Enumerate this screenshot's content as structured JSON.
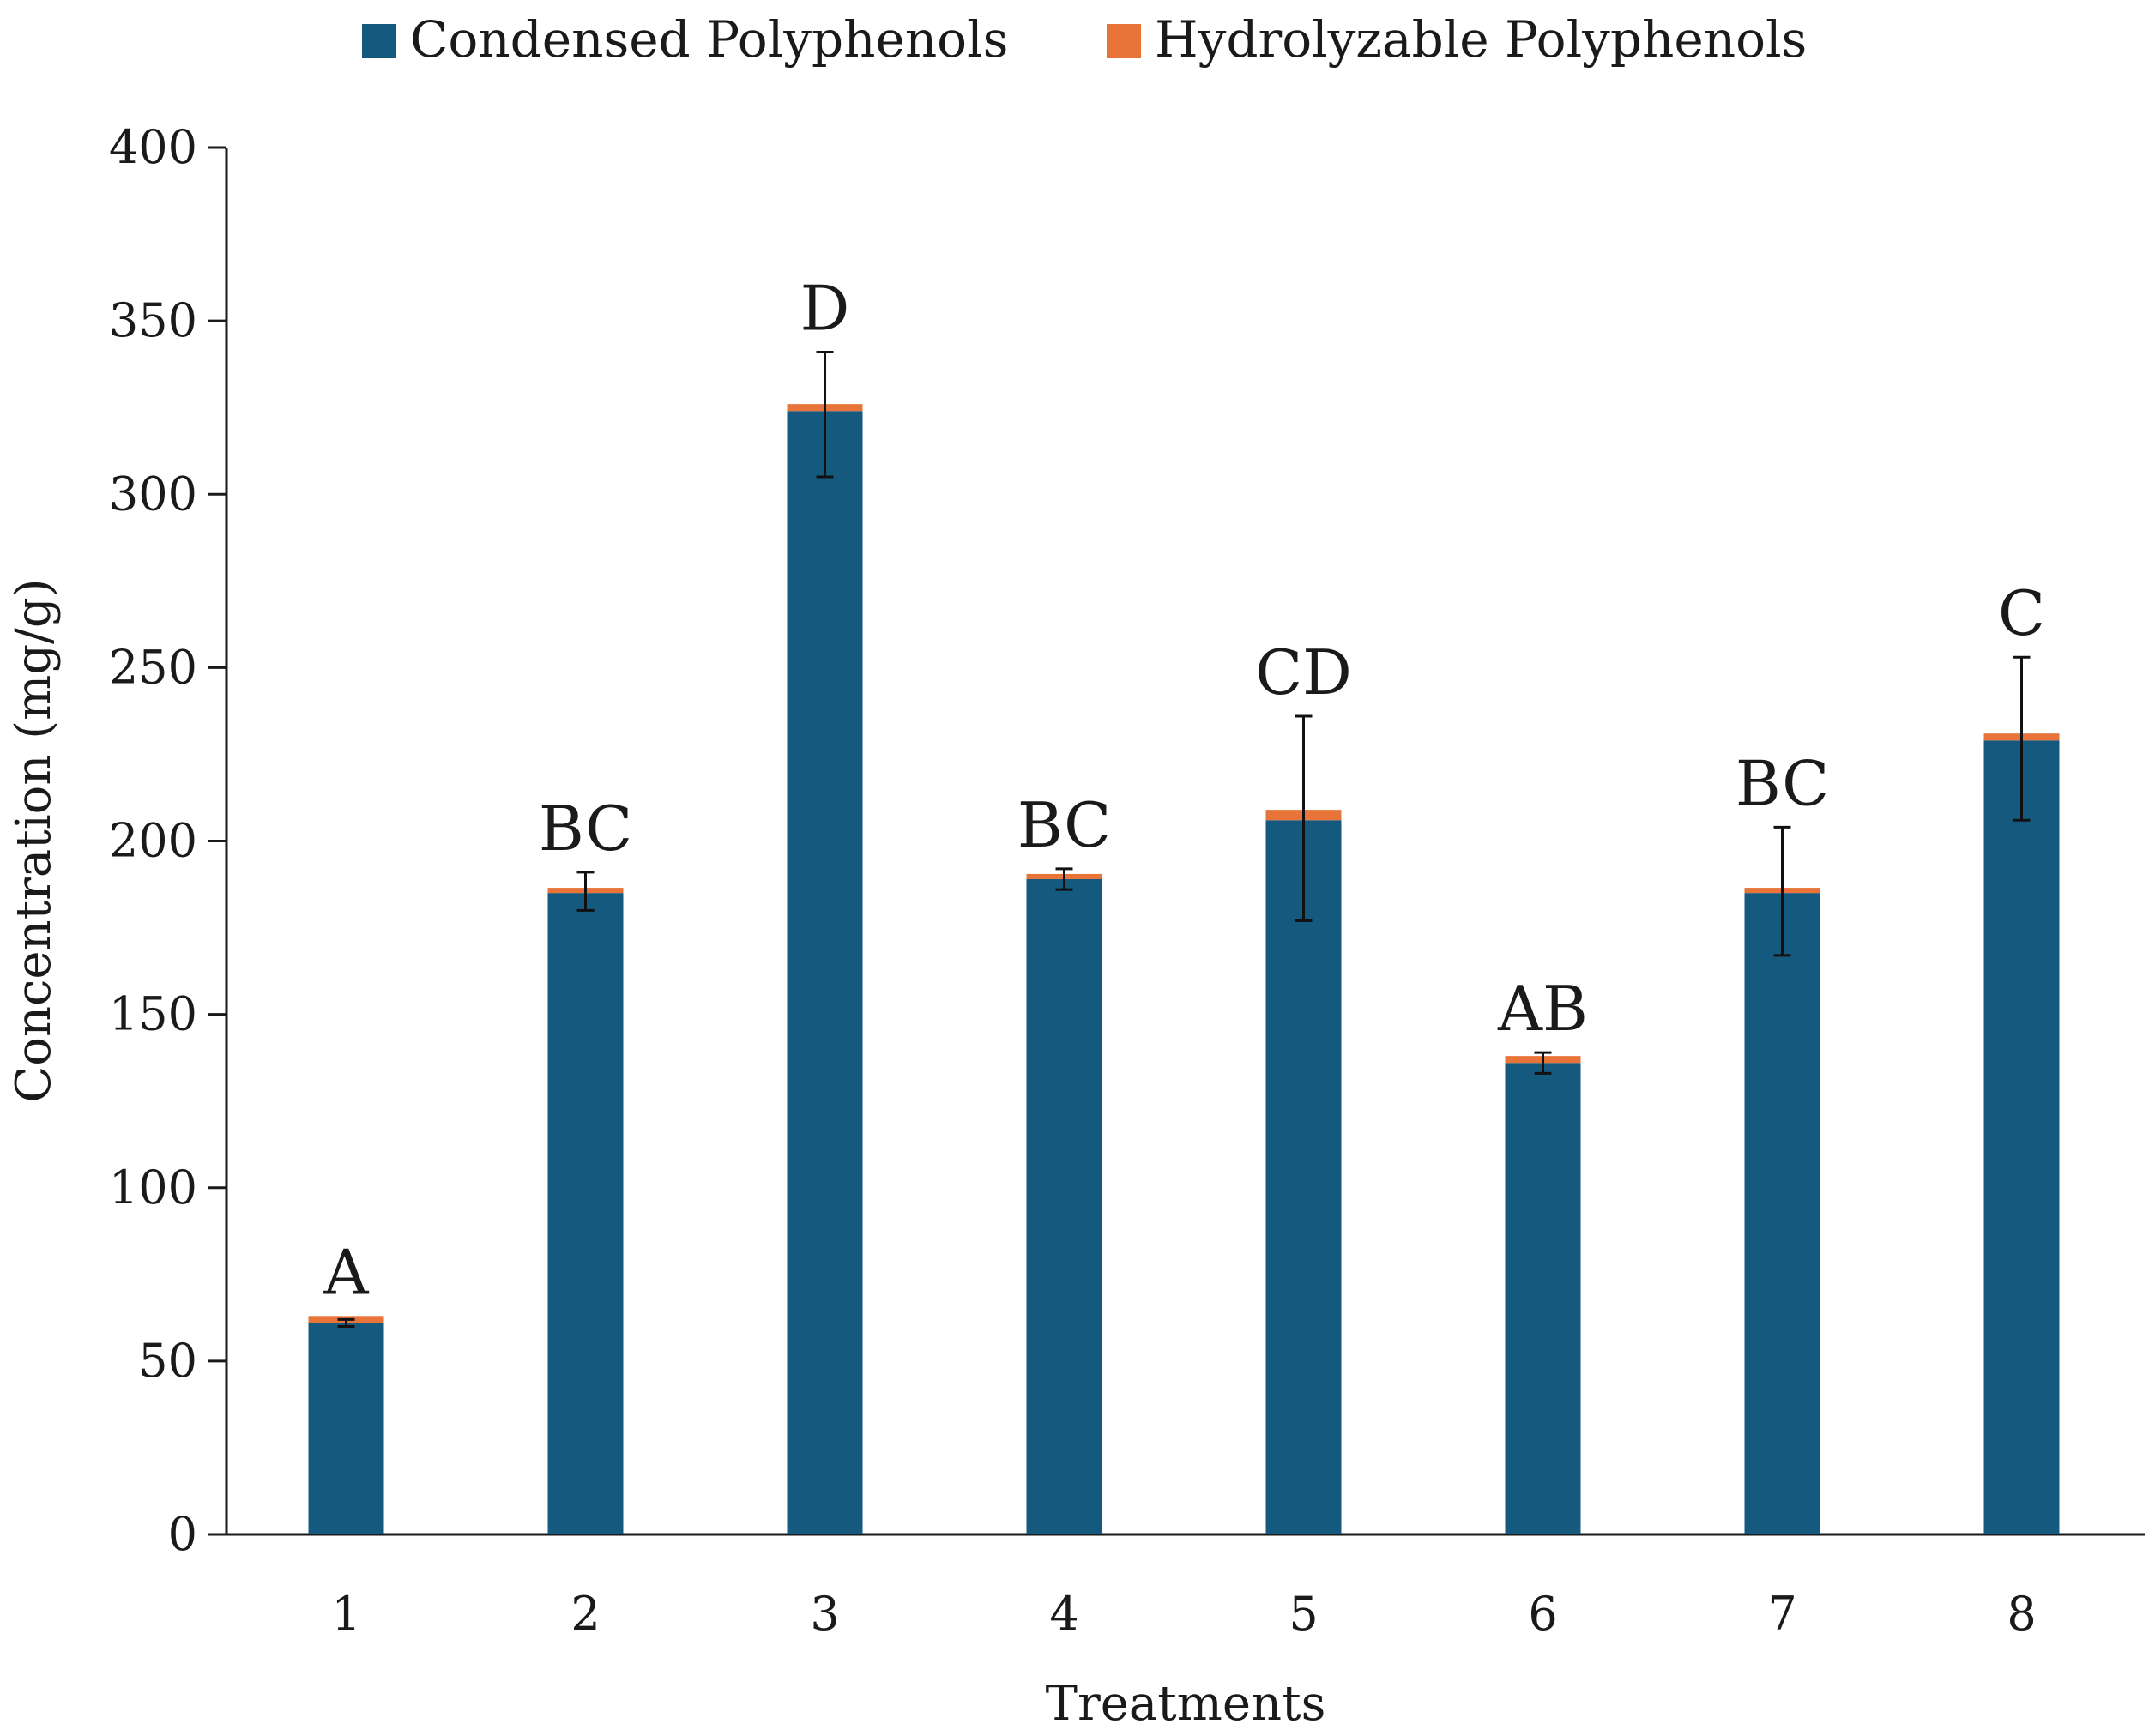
{
  "chart_data": {
    "type": "bar",
    "stacked": true,
    "title": "",
    "xlabel": "Treatments",
    "ylabel": "Concentration  (mg/g)",
    "ylim": [
      0,
      400
    ],
    "yticks": [
      0,
      50,
      100,
      150,
      200,
      250,
      300,
      350,
      400
    ],
    "categories": [
      "1",
      "2",
      "3",
      "4",
      "5",
      "6",
      "7",
      "8"
    ],
    "series": [
      {
        "name": "Condensed Polyphenols",
        "color": "#155a7e",
        "values": [
          61,
          185,
          324,
          189,
          206,
          136,
          185,
          229
        ]
      },
      {
        "name": "Hydrolyzable Polyphenols",
        "color": "#e8743a",
        "values": [
          2,
          1.5,
          2,
          1.5,
          3,
          2,
          1.5,
          2
        ]
      }
    ],
    "error_bars": [
      {
        "low": 60,
        "high": 62
      },
      {
        "low": 180,
        "high": 191
      },
      {
        "low": 305,
        "high": 341
      },
      {
        "low": 186,
        "high": 192
      },
      {
        "low": 177,
        "high": 236
      },
      {
        "low": 133,
        "high": 139
      },
      {
        "low": 167,
        "high": 204
      },
      {
        "low": 206,
        "high": 253
      }
    ],
    "group_labels": [
      "A",
      "BC",
      "D",
      "BC",
      "CD",
      "AB",
      "BC",
      "C"
    ],
    "legend_position": "top-center",
    "grid": false
  }
}
